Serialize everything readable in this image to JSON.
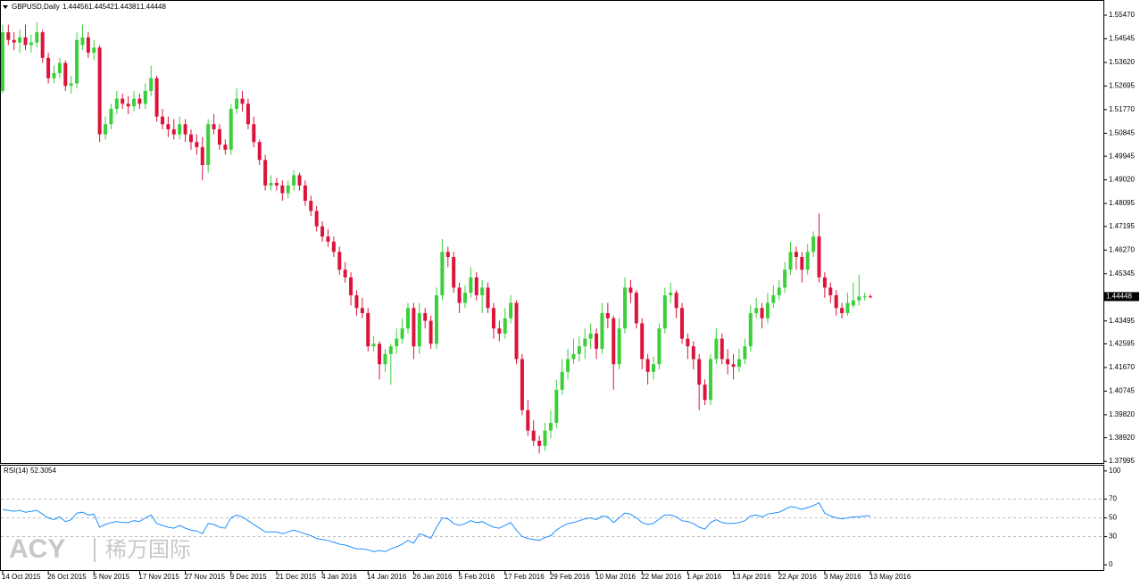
{
  "chart_data": {
    "type": "candlestick",
    "symbol": "GBPUSD,Daily",
    "up_color": "#3ccf3c",
    "down_color": "#dc143c",
    "xlim": [
      -0.3,
      192.8
    ],
    "ylim": [
      1.3793,
      1.5603
    ],
    "yticks": [
      {
        "value": 1.5547,
        "label": "1.55470"
      },
      1.54545,
      {
        "value": 1.5362,
        "label": "1.53620"
      },
      1.52695,
      {
        "value": 1.5177,
        "label": "1.51770"
      },
      1.50845,
      1.49945,
      {
        "value": 1.4902,
        "label": "1.49020"
      },
      1.48095,
      1.47195,
      {
        "value": 1.4627,
        "label": "1.46270"
      },
      1.45345,
      1.43495,
      1.42595,
      {
        "value": 1.4167,
        "label": "1.41670"
      },
      1.40745,
      {
        "value": 1.3982,
        "label": "1.39820"
      },
      {
        "value": 1.3892,
        "label": "1.38920"
      },
      1.37995
    ],
    "xticks": [
      {
        "value": 0,
        "label": "14 Oct 2015"
      },
      {
        "value": 8,
        "label": "26 Oct 2015"
      },
      {
        "value": 16,
        "label": "5 Nov 2015"
      },
      {
        "value": 24,
        "label": "17 Nov 2015"
      },
      {
        "value": 32,
        "label": "27 Nov 2015"
      },
      {
        "value": 40,
        "label": "9 Dec 2015"
      },
      {
        "value": 48,
        "label": "21 Dec 2015"
      },
      {
        "value": 56,
        "label": "4 Jan 2016"
      },
      {
        "value": 64,
        "label": "14 Jan 2016"
      },
      {
        "value": 72,
        "label": "26 Jan 2016"
      },
      {
        "value": 80,
        "label": "5 Feb 2016"
      },
      {
        "value": 88,
        "label": "17 Feb 2016"
      },
      {
        "value": 96,
        "label": "29 Feb 2016"
      },
      {
        "value": 104,
        "label": "10 Mar 2016"
      },
      {
        "value": 112,
        "label": "22 Mar 2016"
      },
      {
        "value": 120,
        "label": "1 Apr 2016"
      },
      {
        "value": 128,
        "label": "13 Apr 2016"
      },
      {
        "value": 136,
        "label": "22 Apr 2016"
      },
      {
        "value": 144,
        "label": "3 May 2016"
      },
      {
        "value": 152,
        "label": "13 May 2016"
      }
    ],
    "candles": [
      [
        1.525,
        1.551,
        1.524,
        1.548
      ],
      [
        1.548,
        1.551,
        1.543,
        1.545
      ],
      [
        1.545,
        1.548,
        1.541,
        1.544
      ],
      [
        1.544,
        1.549,
        1.54,
        1.546
      ],
      [
        1.546,
        1.551,
        1.541,
        1.543
      ],
      [
        1.543,
        1.547,
        1.54,
        1.544
      ],
      [
        1.544,
        1.552,
        1.542,
        1.548
      ],
      [
        1.548,
        1.549,
        1.536,
        1.538
      ],
      [
        1.538,
        1.54,
        1.528,
        1.53
      ],
      [
        1.53,
        1.535,
        1.528,
        1.532
      ],
      [
        1.532,
        1.538,
        1.53,
        1.536
      ],
      [
        1.536,
        1.537,
        1.525,
        1.527
      ],
      [
        1.527,
        1.531,
        1.524,
        1.528
      ],
      [
        1.528,
        1.548,
        1.526,
        1.545
      ],
      [
        1.543,
        1.551,
        1.541,
        1.546
      ],
      [
        1.546,
        1.548,
        1.538,
        1.54
      ],
      [
        1.54,
        1.545,
        1.537,
        1.542
      ],
      [
        1.542,
        1.543,
        1.505,
        1.508
      ],
      [
        1.508,
        1.515,
        1.506,
        1.512
      ],
      [
        1.512,
        1.52,
        1.51,
        1.518
      ],
      [
        1.518,
        1.525,
        1.516,
        1.522
      ],
      [
        1.522,
        1.524,
        1.518,
        1.52
      ],
      [
        1.52,
        1.523,
        1.516,
        1.519
      ],
      [
        1.519,
        1.525,
        1.517,
        1.522
      ],
      [
        1.522,
        1.524,
        1.518,
        1.52
      ],
      [
        1.52,
        1.528,
        1.518,
        1.525
      ],
      [
        1.525,
        1.535,
        1.523,
        1.53
      ],
      [
        1.53,
        1.531,
        1.513,
        1.515
      ],
      [
        1.515,
        1.518,
        1.51,
        1.512
      ],
      [
        1.512,
        1.515,
        1.507,
        1.51
      ],
      [
        1.51,
        1.514,
        1.506,
        1.508
      ],
      [
        1.508,
        1.515,
        1.506,
        1.512
      ],
      [
        1.512,
        1.514,
        1.505,
        1.508
      ],
      [
        1.508,
        1.51,
        1.502,
        1.505
      ],
      [
        1.505,
        1.508,
        1.5,
        1.503
      ],
      [
        1.503,
        1.507,
        1.49,
        1.496
      ],
      [
        1.496,
        1.514,
        1.493,
        1.512
      ],
      [
        1.512,
        1.516,
        1.508,
        1.51
      ],
      [
        1.51,
        1.512,
        1.502,
        1.504
      ],
      [
        1.504,
        1.506,
        1.5,
        1.502
      ],
      [
        1.502,
        1.52,
        1.5,
        1.518
      ],
      [
        1.518,
        1.526,
        1.516,
        1.522
      ],
      [
        1.522,
        1.525,
        1.517,
        1.52
      ],
      [
        1.52,
        1.522,
        1.51,
        1.512
      ],
      [
        1.512,
        1.515,
        1.503,
        1.505
      ],
      [
        1.505,
        1.506,
        1.496,
        1.498
      ],
      [
        1.498,
        1.5,
        1.486,
        1.488
      ],
      [
        1.488,
        1.492,
        1.486,
        1.489
      ],
      [
        1.489,
        1.491,
        1.486,
        1.488
      ],
      [
        1.488,
        1.49,
        1.482,
        1.485
      ],
      [
        1.485,
        1.49,
        1.483,
        1.488
      ],
      [
        1.488,
        1.494,
        1.486,
        1.492
      ],
      [
        1.492,
        1.493,
        1.486,
        1.488
      ],
      [
        1.488,
        1.49,
        1.48,
        1.482
      ],
      [
        1.482,
        1.484,
        1.476,
        1.478
      ],
      [
        1.478,
        1.48,
        1.47,
        1.472
      ],
      [
        1.472,
        1.474,
        1.466,
        1.468
      ],
      [
        1.468,
        1.471,
        1.464,
        1.466
      ],
      [
        1.466,
        1.468,
        1.46,
        1.462
      ],
      [
        1.462,
        1.464,
        1.453,
        1.455
      ],
      [
        1.455,
        1.458,
        1.45,
        1.452
      ],
      [
        1.452,
        1.454,
        1.441,
        1.445
      ],
      [
        1.445,
        1.447,
        1.437,
        1.44
      ],
      [
        1.44,
        1.444,
        1.436,
        1.438
      ],
      [
        1.438,
        1.44,
        1.423,
        1.425
      ],
      [
        1.425,
        1.429,
        1.423,
        1.426
      ],
      [
        1.426,
        1.427,
        1.412,
        1.418
      ],
      [
        1.418,
        1.424,
        1.415,
        1.422
      ],
      [
        1.422,
        1.426,
        1.41,
        1.425
      ],
      [
        1.425,
        1.432,
        1.422,
        1.428
      ],
      [
        1.428,
        1.436,
        1.426,
        1.432
      ],
      [
        1.432,
        1.442,
        1.43,
        1.44
      ],
      [
        1.44,
        1.442,
        1.42,
        1.425
      ],
      [
        1.425,
        1.442,
        1.422,
        1.438
      ],
      [
        1.438,
        1.44,
        1.432,
        1.435
      ],
      [
        1.435,
        1.437,
        1.424,
        1.426
      ],
      [
        1.426,
        1.448,
        1.424,
        1.445
      ],
      [
        1.445,
        1.467,
        1.443,
        1.462
      ],
      [
        1.462,
        1.464,
        1.456,
        1.46
      ],
      [
        1.46,
        1.462,
        1.446,
        1.448
      ],
      [
        1.448,
        1.45,
        1.438,
        1.442
      ],
      [
        1.442,
        1.449,
        1.44,
        1.446
      ],
      [
        1.446,
        1.456,
        1.444,
        1.452
      ],
      [
        1.452,
        1.454,
        1.443,
        1.445
      ],
      [
        1.445,
        1.451,
        1.438,
        1.448
      ],
      [
        1.448,
        1.45,
        1.438,
        1.44
      ],
      [
        1.44,
        1.442,
        1.428,
        1.432
      ],
      [
        1.432,
        1.435,
        1.427,
        1.43
      ],
      [
        1.43,
        1.44,
        1.428,
        1.436
      ],
      [
        1.436,
        1.445,
        1.434,
        1.442
      ],
      [
        1.442,
        1.443,
        1.418,
        1.42
      ],
      [
        1.42,
        1.422,
        1.398,
        1.4
      ],
      [
        1.4,
        1.404,
        1.39,
        1.392
      ],
      [
        1.392,
        1.396,
        1.386,
        1.388
      ],
      [
        1.388,
        1.39,
        1.383,
        1.386
      ],
      [
        1.386,
        1.395,
        1.384,
        1.392
      ],
      [
        1.392,
        1.4,
        1.389,
        1.395
      ],
      [
        1.395,
        1.412,
        1.393,
        1.408
      ],
      [
        1.408,
        1.42,
        1.406,
        1.415
      ],
      [
        1.415,
        1.424,
        1.412,
        1.42
      ],
      [
        1.42,
        1.428,
        1.418,
        1.422
      ],
      [
        1.422,
        1.429,
        1.419,
        1.425
      ],
      [
        1.425,
        1.432,
        1.42,
        1.428
      ],
      [
        1.428,
        1.434,
        1.424,
        1.43
      ],
      [
        1.43,
        1.432,
        1.42,
        1.424
      ],
      [
        1.424,
        1.442,
        1.422,
        1.438
      ],
      [
        1.438,
        1.442,
        1.432,
        1.436
      ],
      [
        1.436,
        1.437,
        1.408,
        1.418
      ],
      [
        1.418,
        1.436,
        1.416,
        1.432
      ],
      [
        1.432,
        1.452,
        1.43,
        1.448
      ],
      [
        1.448,
        1.451,
        1.442,
        1.446
      ],
      [
        1.446,
        1.447,
        1.432,
        1.434
      ],
      [
        1.434,
        1.436,
        1.416,
        1.42
      ],
      [
        1.42,
        1.422,
        1.41,
        1.415
      ],
      [
        1.415,
        1.421,
        1.412,
        1.418
      ],
      [
        1.418,
        1.434,
        1.416,
        1.432
      ],
      [
        1.432,
        1.448,
        1.43,
        1.445
      ],
      [
        1.445,
        1.45,
        1.442,
        1.446
      ],
      [
        1.446,
        1.447,
        1.436,
        1.44
      ],
      [
        1.44,
        1.442,
        1.426,
        1.428
      ],
      [
        1.428,
        1.43,
        1.42,
        1.425
      ],
      [
        1.425,
        1.427,
        1.416,
        1.42
      ],
      [
        1.42,
        1.422,
        1.4,
        1.41
      ],
      [
        1.41,
        1.412,
        1.402,
        1.404
      ],
      [
        1.404,
        1.422,
        1.402,
        1.42
      ],
      [
        1.42,
        1.432,
        1.418,
        1.428
      ],
      [
        1.428,
        1.43,
        1.418,
        1.42
      ],
      [
        1.42,
        1.424,
        1.414,
        1.418
      ],
      [
        1.418,
        1.422,
        1.412,
        1.417
      ],
      [
        1.417,
        1.424,
        1.415,
        1.42
      ],
      [
        1.42,
        1.428,
        1.418,
        1.425
      ],
      [
        1.425,
        1.441,
        1.423,
        1.438
      ],
      [
        1.438,
        1.444,
        1.436,
        1.44
      ],
      [
        1.44,
        1.442,
        1.432,
        1.436
      ],
      [
        1.436,
        1.446,
        1.434,
        1.442
      ],
      [
        1.442,
        1.449,
        1.44,
        1.445
      ],
      [
        1.445,
        1.451,
        1.443,
        1.448
      ],
      [
        1.448,
        1.458,
        1.446,
        1.455
      ],
      [
        1.455,
        1.466,
        1.453,
        1.462
      ],
      [
        1.462,
        1.464,
        1.455,
        1.46
      ],
      [
        1.46,
        1.462,
        1.45,
        1.455
      ],
      [
        1.455,
        1.465,
        1.453,
        1.462
      ],
      [
        1.462,
        1.47,
        1.46,
        1.468
      ],
      [
        1.468,
        1.477,
        1.45,
        1.452
      ],
      [
        1.452,
        1.454,
        1.444,
        1.448
      ],
      [
        1.448,
        1.45,
        1.442,
        1.445
      ],
      [
        1.445,
        1.447,
        1.437,
        1.44
      ],
      [
        1.44,
        1.442,
        1.436,
        1.438
      ],
      [
        1.438,
        1.446,
        1.437,
        1.442
      ],
      [
        1.441,
        1.45,
        1.44,
        1.443
      ],
      [
        1.443,
        1.453,
        1.441,
        1.4445
      ],
      [
        1.4445,
        1.446,
        1.443,
        1.4446
      ],
      [
        1.44456,
        1.44542,
        1.44381,
        1.44448
      ]
    ],
    "rsi": {
      "name": "RSI(14)",
      "color": "#1e90ff",
      "ylim": [
        -5.6,
        105.6
      ],
      "yticks": [
        100,
        70,
        50,
        30,
        0
      ],
      "values": [
        59,
        58,
        57,
        58,
        56,
        57,
        58,
        54,
        50,
        48,
        51,
        46,
        48,
        55,
        56,
        53,
        54,
        40,
        43,
        45,
        46,
        45,
        45,
        47,
        46,
        50,
        53,
        44,
        42,
        40,
        39,
        42,
        39,
        37,
        36,
        33,
        44,
        43,
        40,
        39,
        50,
        53,
        51,
        47,
        43,
        39,
        35,
        35,
        35,
        33,
        35,
        37,
        35,
        33,
        31,
        28,
        27,
        26,
        24,
        22,
        21,
        19,
        17,
        17,
        16,
        14,
        15,
        14,
        17,
        19,
        22,
        26,
        23,
        33,
        31,
        28,
        40,
        50,
        49,
        44,
        42,
        44,
        47,
        45,
        46,
        43,
        40,
        39,
        42,
        45,
        37,
        30,
        28,
        27,
        26,
        29,
        31,
        37,
        41,
        44,
        45,
        47,
        49,
        50,
        48,
        52,
        51,
        45,
        50,
        55,
        54,
        50,
        45,
        43,
        44,
        49,
        53,
        53,
        51,
        47,
        46,
        44,
        40,
        38,
        45,
        48,
        45,
        44,
        44,
        45,
        47,
        52,
        53,
        51,
        54,
        55,
        56,
        59,
        62,
        61,
        59,
        61,
        63,
        66,
        55,
        52,
        50,
        49,
        50,
        51,
        51,
        52,
        52.3054
      ]
    },
    "watermark": {
      "brand": "ACY",
      "chinese": "稀万国际"
    }
  }
}
